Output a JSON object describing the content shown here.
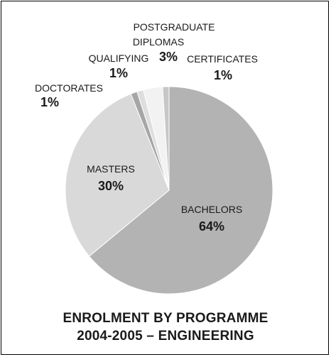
{
  "chart_data": {
    "type": "pie",
    "title": [
      "ENROLMENT BY PROGRAMME",
      "2004-2005 – ENGINEERING"
    ],
    "slices": [
      {
        "label": "BACHELORS",
        "value": 64,
        "pct_label": "64%",
        "color": "#b3b3b3"
      },
      {
        "label": "MASTERS",
        "value": 30,
        "pct_label": "30%",
        "color": "#d9d9d9"
      },
      {
        "label": "DOCTORATES",
        "value": 1,
        "pct_label": "1%",
        "color": "#a6a6a6"
      },
      {
        "label": "QUALIFYING",
        "value": 1,
        "pct_label": "1%",
        "color": "#dedede"
      },
      {
        "label": [
          "POSTGRADUATE",
          "DIPLOMAS"
        ],
        "value": 3,
        "pct_label": "3%",
        "color": "#f2f2f2"
      },
      {
        "label": "CERTIFICATES",
        "value": 1,
        "pct_label": "1%",
        "color": "#c7c7c7"
      }
    ]
  }
}
